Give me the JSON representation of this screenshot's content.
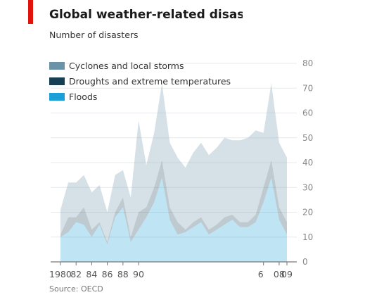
{
  "header": {
    "title": "Global weather-related disaster",
    "subtitle": "Number of disasters",
    "source": "Source: OECD",
    "accent_color": "#e3120b"
  },
  "chart_data": {
    "type": "area",
    "stacked": true,
    "title": "Global weather-related disaster",
    "subtitle": "Number of disasters",
    "xlabel": "",
    "ylabel": "",
    "x": [
      1980,
      1981,
      1982,
      1983,
      1984,
      1985,
      1986,
      1987,
      1988,
      1989,
      1990,
      1991,
      1992,
      1993,
      1994,
      1995,
      1996,
      1997,
      1998,
      1999,
      2000,
      2001,
      2002,
      2003,
      2004,
      2005,
      2006,
      2007,
      2008,
      2009
    ],
    "x_tick_labels": [
      "1980",
      "82",
      "84",
      "86",
      "88",
      "90",
      "6",
      "08",
      "09"
    ],
    "ylim": [
      0,
      80
    ],
    "y_ticks": [
      0,
      10,
      20,
      30,
      40,
      50,
      60,
      70,
      80
    ],
    "y_axis_side": "right",
    "grid": true,
    "legend_position": "top-left",
    "series": [
      {
        "name": "Floods",
        "color": "#1a9fd6",
        "values": [
          10,
          12,
          16,
          15,
          10,
          15,
          7,
          18,
          22,
          8,
          13,
          18,
          24,
          34,
          17,
          11,
          12,
          14,
          16,
          11,
          13,
          15,
          17,
          14,
          14,
          16,
          24,
          34,
          17,
          11
        ]
      },
      {
        "name": "Droughts and extreme temperatures",
        "color": "#163f54",
        "values": [
          1,
          6,
          2,
          7,
          3,
          1,
          1,
          2,
          4,
          2,
          7,
          4,
          6,
          7,
          5,
          5,
          1,
          2,
          2,
          2,
          2,
          3,
          2,
          2,
          2,
          3,
          6,
          7,
          5,
          5
        ]
      },
      {
        "name": "Cyclones and local storms",
        "color": "#6b93a8",
        "values": [
          10,
          14,
          14,
          13,
          15,
          15,
          12,
          15,
          11,
          16,
          37,
          17,
          22,
          31,
          26,
          26,
          25,
          28,
          30,
          30,
          31,
          32,
          30,
          33,
          34,
          34,
          22,
          31,
          26,
          26
        ]
      }
    ]
  }
}
